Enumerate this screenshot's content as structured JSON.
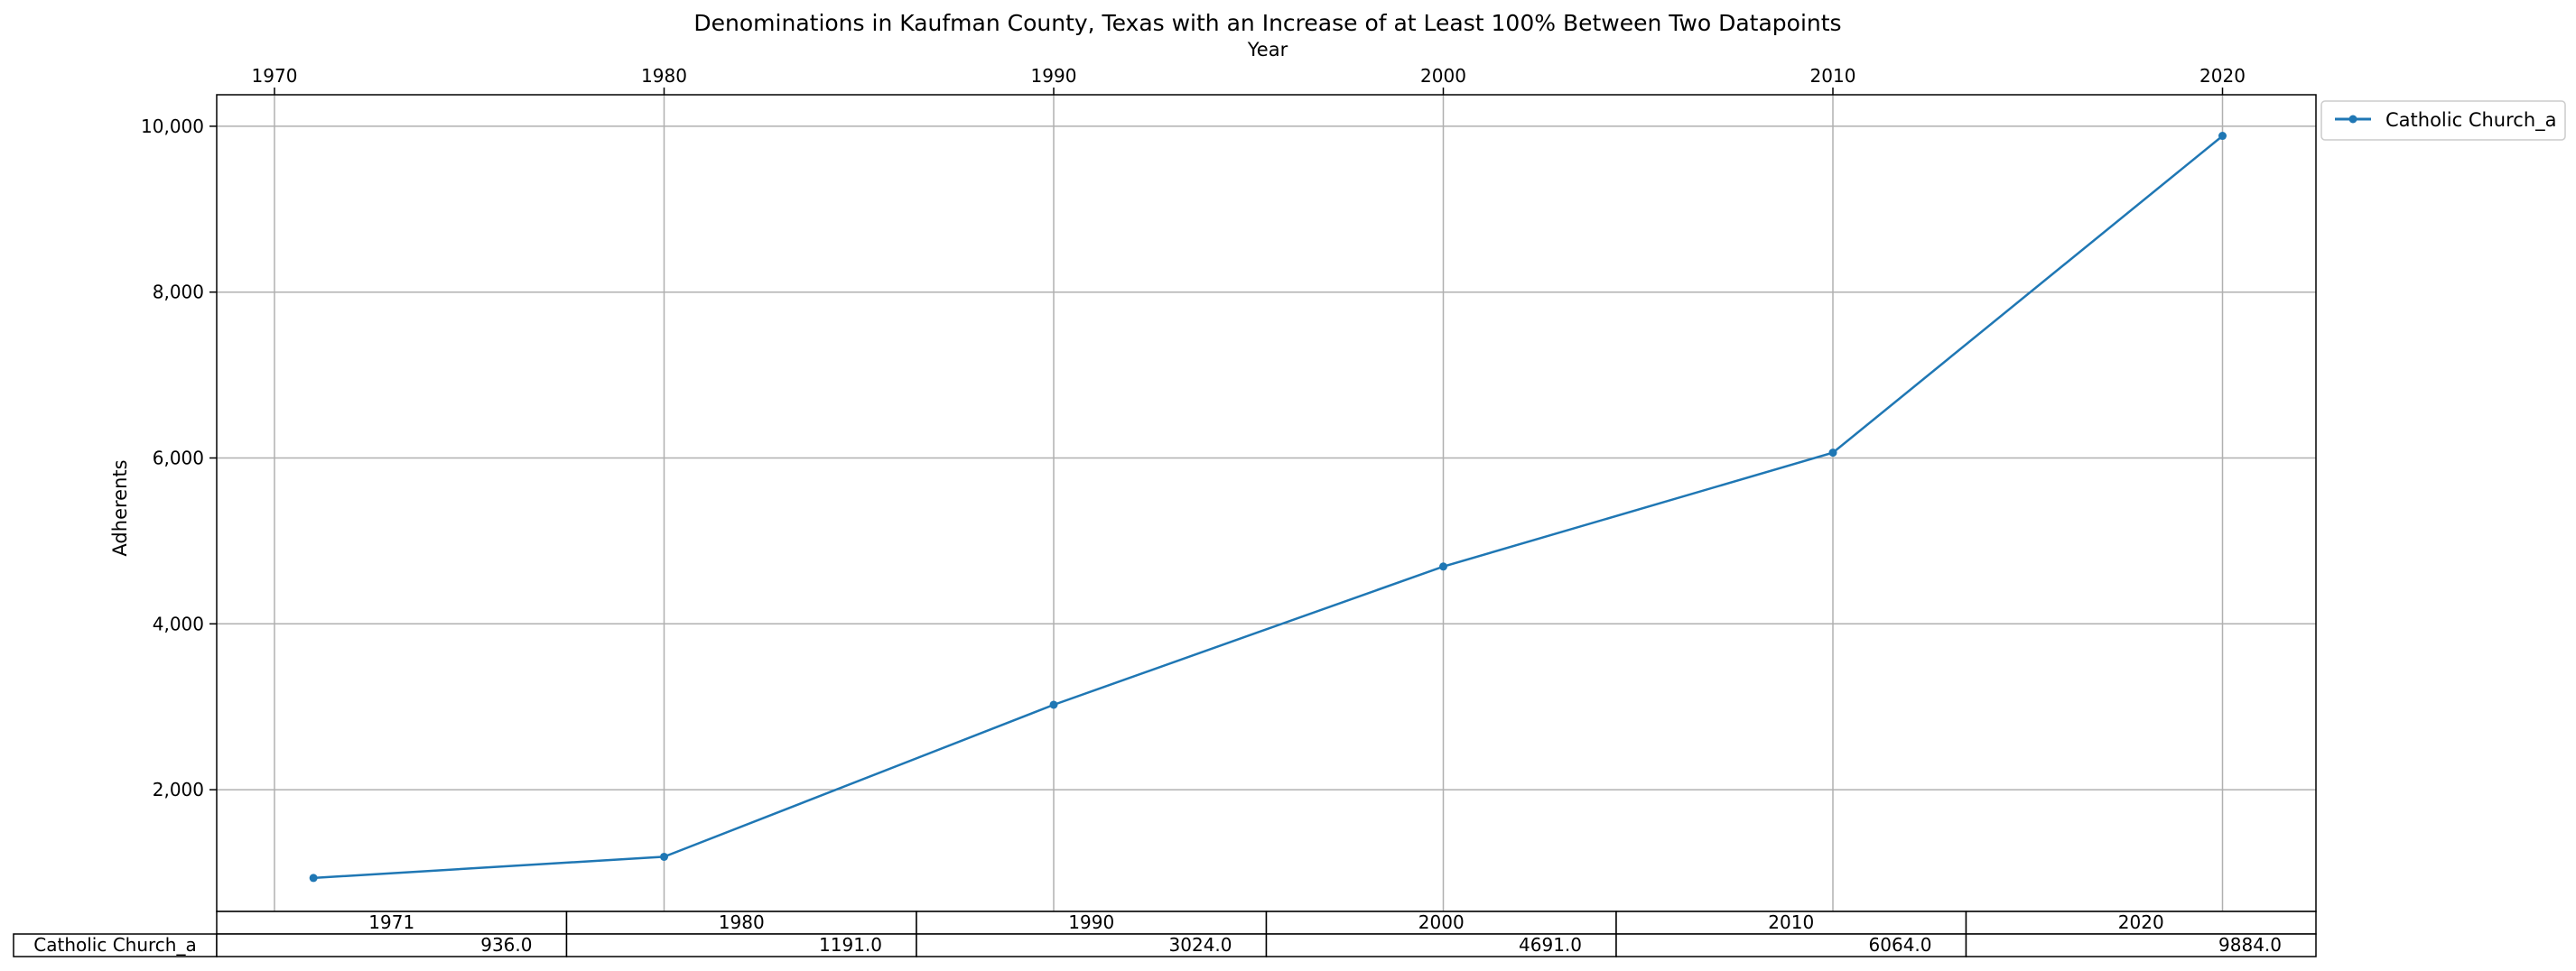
{
  "chart_data": {
    "type": "line",
    "title": "Denominations in Kaufman County, Texas with an Increase of at Least 100% Between Two Datapoints",
    "xlabel": "Year",
    "ylabel": "Adherents",
    "x": [
      1971,
      1980,
      1990,
      2000,
      2010,
      2020
    ],
    "series": [
      {
        "name": "Catholic Church_a",
        "values": [
          936.0,
          1191.0,
          3024.0,
          4691.0,
          6064.0,
          9884.0
        ]
      }
    ],
    "xlim": [
      1964.5,
      2022.5
    ],
    "ylim": [
      600,
      10350
    ],
    "x_ticks": [
      "1970",
      "1980",
      "1990",
      "2000",
      "2010",
      "2020"
    ],
    "y_ticks": [
      "2,000",
      "4,000",
      "6,000",
      "8,000",
      "10,000"
    ],
    "x_axis_position": "top",
    "grid": true,
    "legend_position": "outside-top-right",
    "line_color": "#1f77b4",
    "table": {
      "columns": [
        "1971",
        "1980",
        "1990",
        "2000",
        "2010",
        "2020"
      ],
      "row_label": "Catholic Church_a",
      "cells": [
        "936.0",
        "1191.0",
        "3024.0",
        "4691.0",
        "6064.0",
        "9884.0"
      ]
    }
  }
}
